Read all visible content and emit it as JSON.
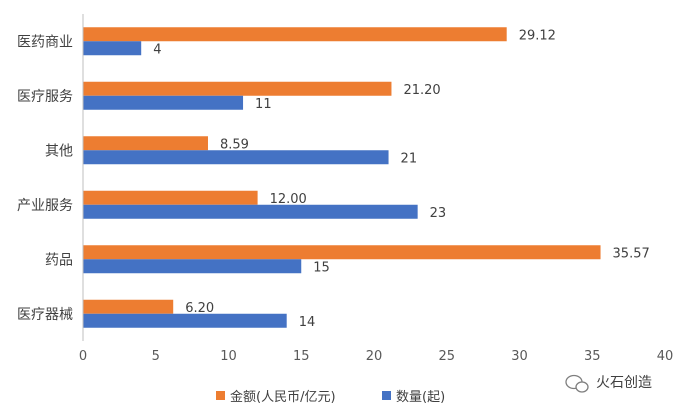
{
  "chart_data": {
    "type": "bar",
    "orientation": "horizontal",
    "categories": [
      "医药商业",
      "医疗服务",
      "其他",
      "产业服务",
      "药品",
      "医疗器械"
    ],
    "series": [
      {
        "name": "金额(人民币/亿元)",
        "color": "#ED7D31",
        "values": [
          29.12,
          21.2,
          8.59,
          12.0,
          35.57,
          6.2
        ],
        "labels": [
          "29.12",
          "21.20",
          "8.59",
          "12.00",
          "35.57",
          "6.20"
        ]
      },
      {
        "name": "数量(起)",
        "color": "#4472C4",
        "values": [
          4,
          11,
          21,
          23,
          15,
          14
        ],
        "labels": [
          "4",
          "11",
          "21",
          "23",
          "15",
          "14"
        ]
      }
    ],
    "xlim": [
      0,
      40
    ],
    "xticks": [
      0,
      5,
      10,
      15,
      20,
      25,
      30,
      35,
      40
    ],
    "grid": false,
    "legend_position": "bottom"
  },
  "watermark": {
    "text": "火石创造",
    "icon": "wechat-icon"
  }
}
